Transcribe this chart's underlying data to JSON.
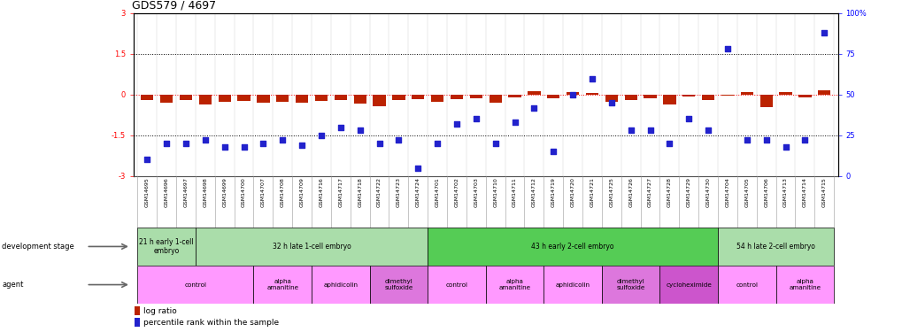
{
  "title": "GDS579 / 4697",
  "sample_ids": [
    "GSM14695",
    "GSM14696",
    "GSM14697",
    "GSM14698",
    "GSM14699",
    "GSM14700",
    "GSM14707",
    "GSM14708",
    "GSM14709",
    "GSM14716",
    "GSM14717",
    "GSM14718",
    "GSM14722",
    "GSM14723",
    "GSM14724",
    "GSM14701",
    "GSM14702",
    "GSM14703",
    "GSM14710",
    "GSM14711",
    "GSM14712",
    "GSM14719",
    "GSM14720",
    "GSM14721",
    "GSM14725",
    "GSM14726",
    "GSM14727",
    "GSM14728",
    "GSM14729",
    "GSM14730",
    "GSM14704",
    "GSM14705",
    "GSM14706",
    "GSM14713",
    "GSM14714",
    "GSM14715"
  ],
  "log_ratio": [
    -0.2,
    -0.3,
    -0.2,
    -0.35,
    -0.28,
    -0.22,
    -0.3,
    -0.25,
    -0.3,
    -0.22,
    -0.2,
    -0.32,
    -0.42,
    -0.2,
    -0.18,
    -0.25,
    -0.18,
    -0.12,
    -0.3,
    -0.1,
    0.12,
    -0.15,
    0.08,
    0.06,
    -0.28,
    -0.2,
    -0.12,
    -0.35,
    -0.08,
    -0.2,
    -0.05,
    0.1,
    -0.45,
    0.1,
    -0.1,
    0.15
  ],
  "percentile": [
    10,
    20,
    20,
    22,
    18,
    18,
    20,
    22,
    19,
    25,
    30,
    28,
    20,
    22,
    5,
    20,
    32,
    35,
    20,
    33,
    42,
    15,
    50,
    60,
    45,
    28,
    28,
    20,
    35,
    28,
    78,
    22,
    22,
    18,
    22,
    88
  ],
  "stage_groups": [
    {
      "label": "21 h early 1-cell\nembryo",
      "start": 0,
      "end": 3,
      "color": "#AADDAA"
    },
    {
      "label": "32 h late 1-cell embryo",
      "start": 3,
      "end": 15,
      "color": "#AADDAA"
    },
    {
      "label": "43 h early 2-cell embryo",
      "start": 15,
      "end": 30,
      "color": "#55CC55"
    },
    {
      "label": "54 h late 2-cell embryo",
      "start": 30,
      "end": 36,
      "color": "#AADDAA"
    }
  ],
  "agent_groups": [
    {
      "label": "control",
      "start": 0,
      "end": 6,
      "color": "#FF99FF"
    },
    {
      "label": "alpha\namanitine",
      "start": 6,
      "end": 9,
      "color": "#FF99FF"
    },
    {
      "label": "aphidicolin",
      "start": 9,
      "end": 12,
      "color": "#FF99FF"
    },
    {
      "label": "dimethyl\nsulfoxide",
      "start": 12,
      "end": 15,
      "color": "#DD77DD"
    },
    {
      "label": "control",
      "start": 15,
      "end": 18,
      "color": "#FF99FF"
    },
    {
      "label": "alpha\namanitine",
      "start": 18,
      "end": 21,
      "color": "#FF99FF"
    },
    {
      "label": "aphidicolin",
      "start": 21,
      "end": 24,
      "color": "#FF99FF"
    },
    {
      "label": "dimethyl\nsulfoxide",
      "start": 24,
      "end": 27,
      "color": "#DD77DD"
    },
    {
      "label": "cycloheximide",
      "start": 27,
      "end": 30,
      "color": "#CC55CC"
    },
    {
      "label": "control",
      "start": 30,
      "end": 33,
      "color": "#FF99FF"
    },
    {
      "label": "alpha\namanitine",
      "start": 33,
      "end": 36,
      "color": "#FF99FF"
    }
  ],
  "ylim_left": [
    -3,
    3
  ],
  "ylim_right": [
    0,
    100
  ],
  "bar_color": "#BB2200",
  "scatter_color": "#2222CC",
  "title_fontsize": 9
}
